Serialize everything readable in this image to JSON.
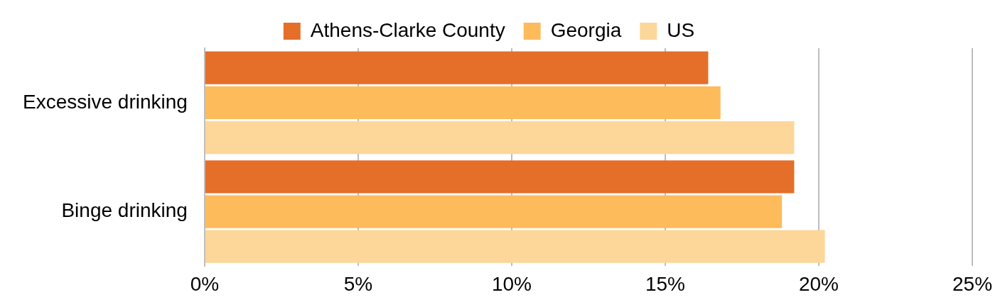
{
  "chart_data": {
    "type": "bar",
    "orientation": "horizontal",
    "categories": [
      "Excessive drinking",
      "Binge drinking"
    ],
    "series": [
      {
        "name": "Athens-Clarke County",
        "color": "#e56e28",
        "values": [
          16.4,
          19.2
        ]
      },
      {
        "name": "Georgia",
        "color": "#fdbb5b",
        "values": [
          16.8,
          18.8
        ]
      },
      {
        "name": "US",
        "color": "#fdd699",
        "values": [
          19.2,
          20.2
        ]
      }
    ],
    "xlim": [
      0,
      25
    ],
    "xticks": [
      {
        "value": 0,
        "label": "0%"
      },
      {
        "value": 5,
        "label": "5%"
      },
      {
        "value": 10,
        "label": "10%"
      },
      {
        "value": 15,
        "label": "15%"
      },
      {
        "value": 20,
        "label": "20%"
      },
      {
        "value": 25,
        "label": "25%"
      }
    ],
    "grid": "x",
    "legend": "top"
  }
}
